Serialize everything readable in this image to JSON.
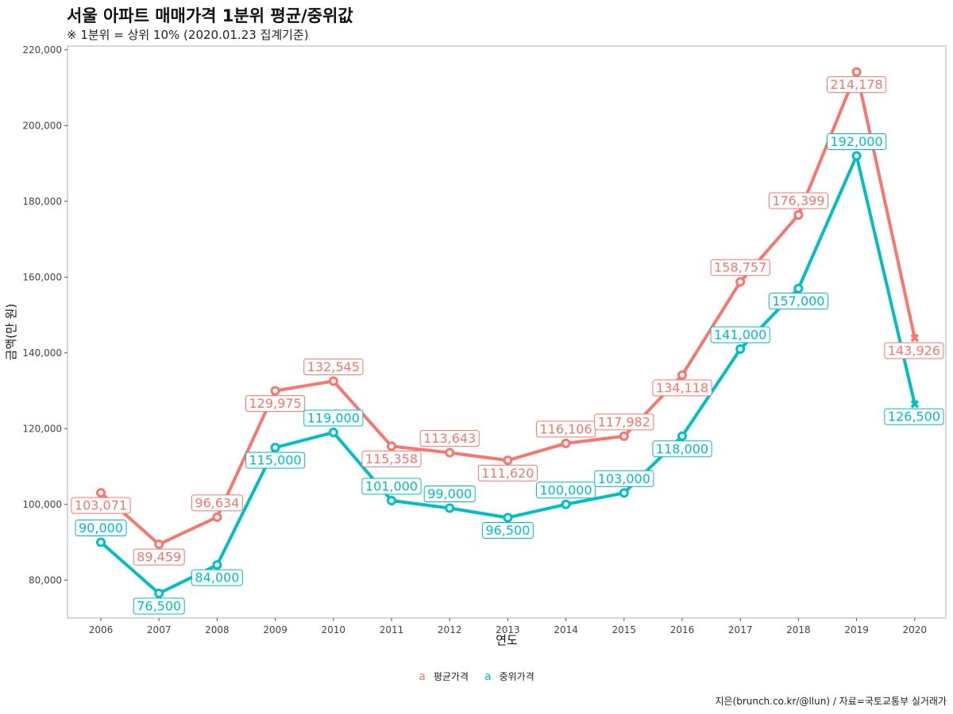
{
  "title": "서울 아파트 매매가격 1분위 평균/중위값",
  "subtitle": "※ 1분위 = 상위 10% (2020.01.23 집계기준)",
  "caption": "지은(brunch.co.kr/@llun) / 자료=국토교통부 실거래가",
  "chart_data": {
    "type": "line",
    "xlabel": "연도",
    "ylabel": "금액(만 원)",
    "x": [
      "2006",
      "2007",
      "2008",
      "2009",
      "2010",
      "2011",
      "2012",
      "2013",
      "2014",
      "2015",
      "2016",
      "2017",
      "2018",
      "2019",
      "2020"
    ],
    "ylim": [
      70000,
      221000
    ],
    "yticks": [
      80000,
      100000,
      120000,
      140000,
      160000,
      180000,
      200000,
      220000
    ],
    "ytick_labels": [
      "80,000",
      "100,000",
      "120,000",
      "140,000",
      "160,000",
      "180,000",
      "200,000",
      "220,000"
    ],
    "grid": false,
    "legend_position": "bottom",
    "series": [
      {
        "name": "평균가격",
        "color": "#F8766D",
        "values": [
          103071,
          89459,
          96634,
          129975,
          132545,
          115358,
          113643,
          111620,
          116106,
          117982,
          134118,
          158757,
          176399,
          214178,
          143926
        ],
        "labels": [
          "103,071",
          "89,459",
          "96,634",
          "129,975",
          "132,545",
          "115,358",
          "113,643",
          "111,620",
          "116,106",
          "117,982",
          "134,118",
          "158,757",
          "176,399",
          "214,178",
          "143,926"
        ],
        "label_pos": [
          "below",
          "below",
          "above",
          "below",
          "above",
          "below",
          "above",
          "below",
          "above",
          "above",
          "below",
          "above",
          "above",
          "below",
          "below"
        ]
      },
      {
        "name": "중위가격",
        "color": "#00BFC4",
        "values": [
          90000,
          76500,
          84000,
          115000,
          119000,
          101000,
          99000,
          96500,
          100000,
          103000,
          118000,
          141000,
          157000,
          192000,
          126500
        ],
        "labels": [
          "90,000",
          "76,500",
          "84,000",
          "115,000",
          "119,000",
          "101,000",
          "99,000",
          "96,500",
          "100,000",
          "103,000",
          "118,000",
          "141,000",
          "157,000",
          "192,000",
          "126,500"
        ],
        "label_pos": [
          "above",
          "below",
          "below",
          "below",
          "above",
          "above",
          "above",
          "below",
          "above",
          "above",
          "below",
          "above",
          "below",
          "above",
          "below"
        ]
      }
    ]
  },
  "legend": {
    "key_glyph": "a",
    "items": [
      {
        "label": "평균가격",
        "color": "#F8766D"
      },
      {
        "label": "중위가격",
        "color": "#00BFC4"
      }
    ]
  }
}
